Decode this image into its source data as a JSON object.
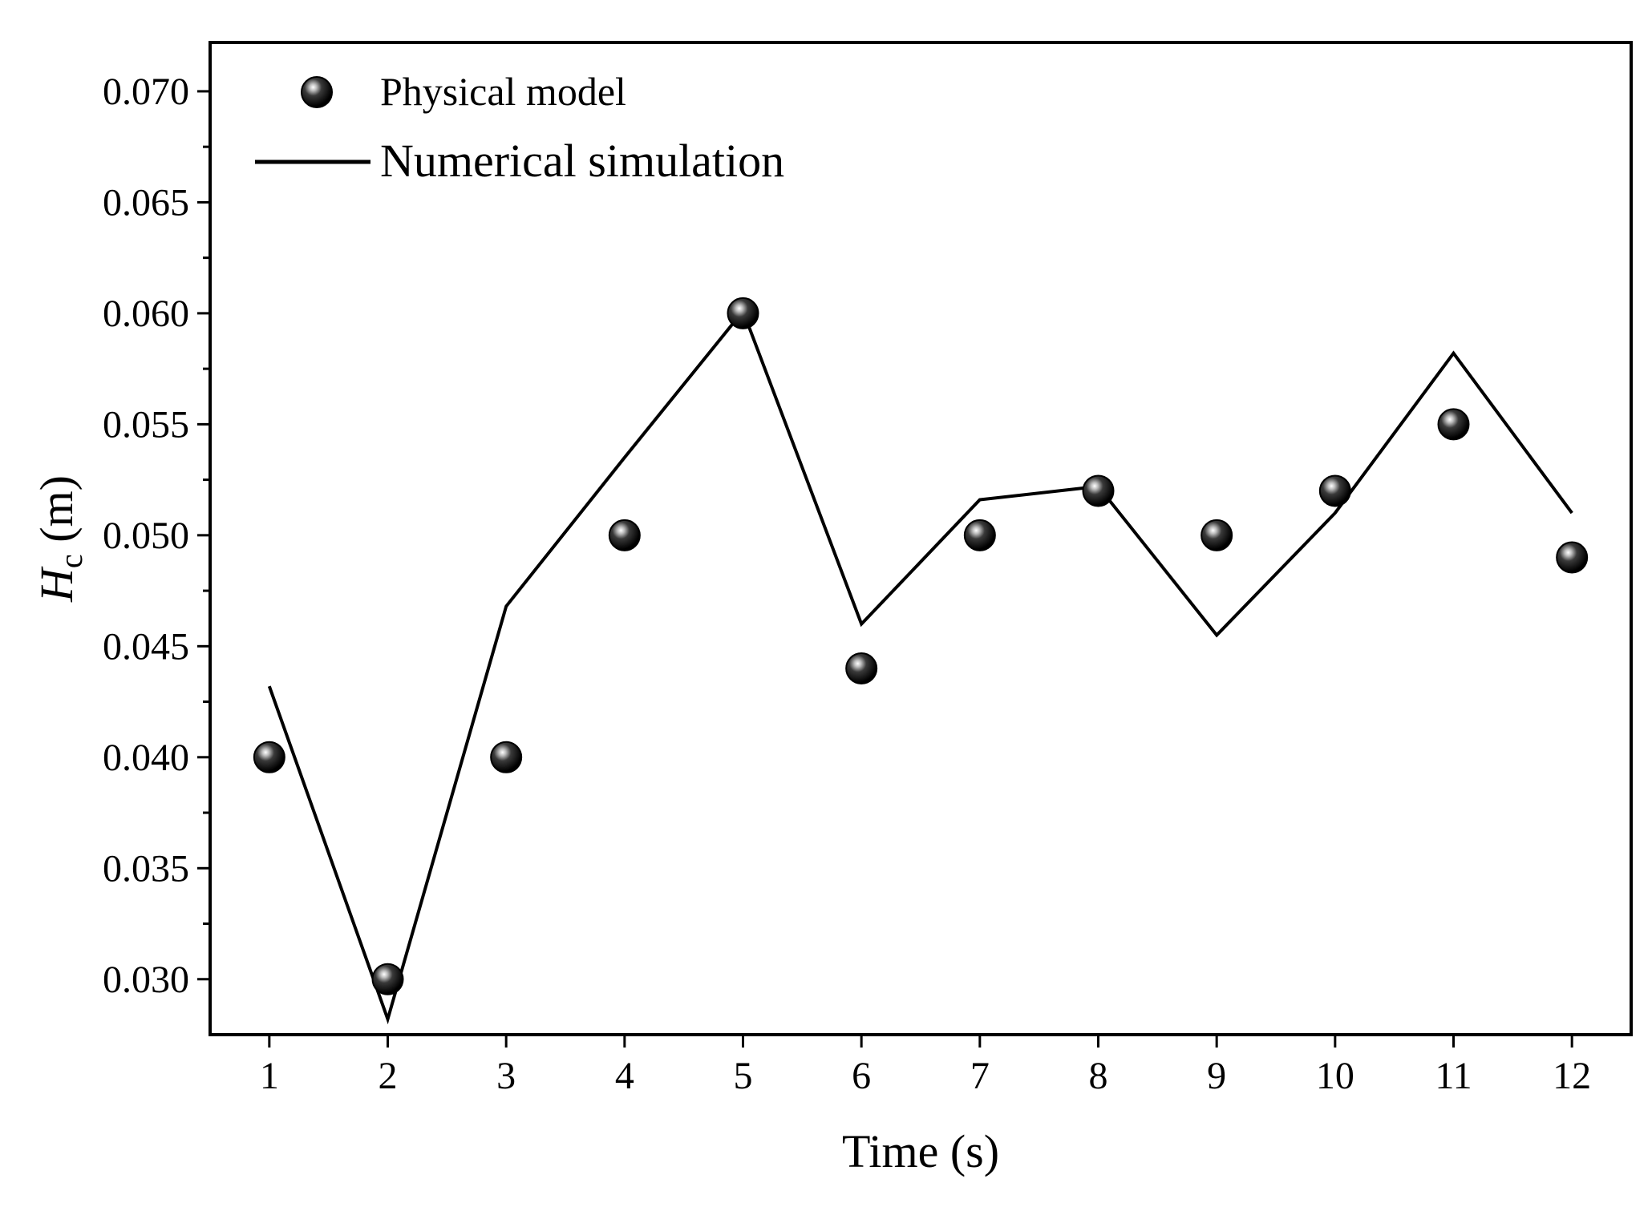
{
  "chart_data": {
    "type": "line+scatter",
    "title": "",
    "xlabel": "Time (s)",
    "ylabel_main": "H",
    "ylabel_sub": "c",
    "ylabel_unit": " (m)",
    "xlim": [
      0.5,
      12.5
    ],
    "ylim": [
      0.0275,
      0.0722
    ],
    "x_ticks": [
      1,
      2,
      3,
      4,
      5,
      6,
      7,
      8,
      9,
      10,
      11,
      12
    ],
    "x_tick_labels": [
      "1",
      "2",
      "3",
      "4",
      "5",
      "6",
      "7",
      "8",
      "9",
      "10",
      "11",
      "12"
    ],
    "y_ticks": [
      0.03,
      0.035,
      0.04,
      0.045,
      0.05,
      0.055,
      0.06,
      0.065,
      0.07
    ],
    "y_tick_labels": [
      "0.030",
      "0.035",
      "0.040",
      "0.045",
      "0.050",
      "0.055",
      "0.060",
      "0.065",
      "0.070"
    ],
    "legend_position": "top-left",
    "series": [
      {
        "name": "Physical model",
        "kind": "scatter",
        "x": [
          1,
          2,
          3,
          4,
          5,
          6,
          7,
          8,
          9,
          10,
          11,
          12
        ],
        "values": [
          0.04,
          0.03,
          0.04,
          0.05,
          0.06,
          0.044,
          0.05,
          0.052,
          0.05,
          0.052,
          0.055,
          0.049
        ]
      },
      {
        "name": "Numerical simulation",
        "kind": "line",
        "x": [
          1,
          2,
          3,
          4,
          5,
          6,
          7,
          8,
          9,
          10,
          11,
          12
        ],
        "values": [
          0.0432,
          0.0282,
          0.0468,
          0.0535,
          0.0601,
          0.046,
          0.0516,
          0.0522,
          0.0455,
          0.051,
          0.0582,
          0.051
        ]
      }
    ]
  }
}
